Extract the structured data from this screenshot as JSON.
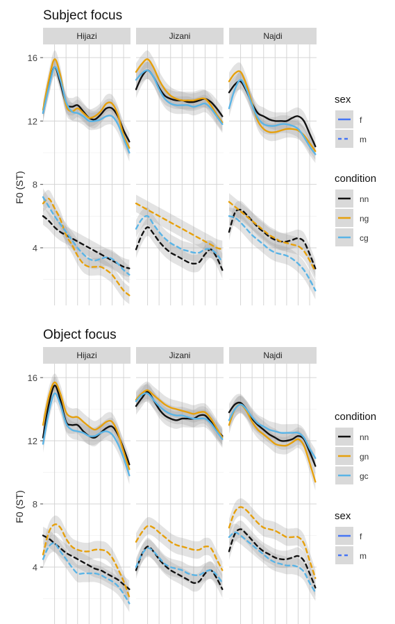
{
  "chart_data": [
    {
      "type": "line",
      "title": "Subject focus",
      "ylabel": "F0 (ST)",
      "ylim": [
        0,
        17.5
      ],
      "yticks": [
        4,
        8,
        12,
        16
      ],
      "xlim": [
        0,
        7.6
      ],
      "xgrid": [
        1,
        2,
        3,
        4,
        5,
        6,
        7
      ],
      "grid": true,
      "legend_position": "right",
      "panels": [
        "Hijazi",
        "Jizani",
        "Najdi"
      ],
      "legends": [
        {
          "title": "sex",
          "entries": [
            {
              "label": "f",
              "style": "solid",
              "color": "#4575f5"
            },
            {
              "label": "m",
              "style": "dashed",
              "color": "#4575f5"
            }
          ]
        },
        {
          "title": "condition",
          "entries": [
            {
              "label": "nn",
              "style": "solid",
              "color": "#111111"
            },
            {
              "label": "ng",
              "style": "solid",
              "color": "#e6a00c"
            },
            {
              "label": "cg",
              "style": "solid",
              "color": "#5ab4e6"
            }
          ]
        }
      ],
      "x": [
        0,
        0.5,
        1,
        1.5,
        2,
        2.5,
        3,
        3.5,
        4,
        4.5,
        5,
        5.5,
        6,
        6.5,
        7,
        7.5
      ],
      "series": [
        {
          "name": "nn",
          "panel": "Hijazi",
          "sex": "f",
          "values": [
            12.5,
            14.2,
            15.4,
            14.4,
            13.1,
            12.9,
            13.0,
            12.6,
            12.2,
            12.1,
            12.4,
            12.8,
            12.8,
            12.3,
            11.4,
            10.7
          ]
        },
        {
          "name": "ng",
          "panel": "Hijazi",
          "sex": "f",
          "values": [
            12.7,
            14.6,
            15.9,
            14.9,
            13.0,
            12.6,
            12.8,
            12.5,
            12.2,
            12.3,
            12.6,
            13.1,
            13.1,
            12.4,
            11.1,
            10.3
          ]
        },
        {
          "name": "cg",
          "panel": "Hijazi",
          "sex": "f",
          "values": [
            12.5,
            14.1,
            15.4,
            14.6,
            13.2,
            12.6,
            12.5,
            12.3,
            12.0,
            12.0,
            12.1,
            12.3,
            12.3,
            11.8,
            10.9,
            10.0
          ]
        },
        {
          "name": "nn",
          "panel": "Hijazi",
          "sex": "m",
          "values": [
            6.0,
            5.7,
            5.3,
            5.0,
            4.8,
            4.6,
            4.4,
            4.2,
            4.0,
            3.8,
            3.6,
            3.4,
            3.2,
            3.0,
            2.8,
            2.7
          ]
        },
        {
          "name": "ng",
          "panel": "Hijazi",
          "sex": "m",
          "values": [
            6.8,
            7.1,
            6.5,
            5.8,
            4.8,
            4.2,
            3.5,
            3.0,
            2.8,
            2.8,
            2.8,
            2.6,
            2.3,
            1.8,
            1.3,
            1.0
          ]
        },
        {
          "name": "cg",
          "panel": "Hijazi",
          "sex": "m",
          "values": [
            7.2,
            6.6,
            6.0,
            5.5,
            5.0,
            4.5,
            4.0,
            3.6,
            3.3,
            3.2,
            3.3,
            3.4,
            3.3,
            3.0,
            2.6,
            2.3
          ]
        },
        {
          "name": "nn",
          "panel": "Jizani",
          "sex": "f",
          "values": [
            14.0,
            14.8,
            15.2,
            14.8,
            14.1,
            13.6,
            13.4,
            13.3,
            13.3,
            13.2,
            13.2,
            13.3,
            13.4,
            13.2,
            12.8,
            12.3
          ]
        },
        {
          "name": "ng",
          "panel": "Jizani",
          "sex": "f",
          "values": [
            15.1,
            15.6,
            15.9,
            15.4,
            14.6,
            14.0,
            13.6,
            13.4,
            13.3,
            13.3,
            13.3,
            13.4,
            13.4,
            13.0,
            12.4,
            11.9
          ]
        },
        {
          "name": "cg",
          "panel": "Jizani",
          "sex": "f",
          "values": [
            14.6,
            15.0,
            15.2,
            14.8,
            14.0,
            13.4,
            13.1,
            13.0,
            13.0,
            13.0,
            12.9,
            13.0,
            13.1,
            12.8,
            12.3,
            11.8
          ]
        },
        {
          "name": "nn",
          "panel": "Jizani",
          "sex": "m",
          "values": [
            3.9,
            4.8,
            5.3,
            4.9,
            4.4,
            4.0,
            3.7,
            3.5,
            3.3,
            3.1,
            3.0,
            3.1,
            3.6,
            3.9,
            3.4,
            2.6
          ]
        },
        {
          "name": "ng",
          "panel": "Jizani",
          "sex": "m",
          "values": [
            6.8,
            6.6,
            6.4,
            6.2,
            6.0,
            5.8,
            5.6,
            5.4,
            5.2,
            5.0,
            4.8,
            4.6,
            4.4,
            4.2,
            4.0,
            3.9
          ]
        },
        {
          "name": "cg",
          "panel": "Jizani",
          "sex": "m",
          "values": [
            5.2,
            5.8,
            6.0,
            5.5,
            5.0,
            4.6,
            4.3,
            4.1,
            3.9,
            3.8,
            3.7,
            3.7,
            3.9,
            3.9,
            3.6,
            3.1
          ]
        },
        {
          "name": "nn",
          "panel": "Najdi",
          "sex": "f",
          "values": [
            13.8,
            14.3,
            14.5,
            13.9,
            13.1,
            12.5,
            12.3,
            12.1,
            12.0,
            12.0,
            12.0,
            12.2,
            12.3,
            12.0,
            11.2,
            10.4
          ]
        },
        {
          "name": "ng",
          "panel": "Najdi",
          "sex": "f",
          "values": [
            14.5,
            15.0,
            15.1,
            14.3,
            13.1,
            12.0,
            11.5,
            11.3,
            11.3,
            11.4,
            11.5,
            11.5,
            11.4,
            11.1,
            10.6,
            10.1
          ]
        },
        {
          "name": "cg",
          "panel": "Najdi",
          "sex": "f",
          "values": [
            12.8,
            14.0,
            14.6,
            14.0,
            13.0,
            12.2,
            11.8,
            11.7,
            11.7,
            11.8,
            11.8,
            11.7,
            11.5,
            11.0,
            10.4,
            9.9
          ]
        },
        {
          "name": "nn",
          "panel": "Najdi",
          "sex": "m",
          "values": [
            5.0,
            6.2,
            6.4,
            6.1,
            5.7,
            5.3,
            5.0,
            4.7,
            4.5,
            4.4,
            4.4,
            4.5,
            4.6,
            4.4,
            3.6,
            2.7
          ]
        },
        {
          "name": "ng",
          "panel": "Najdi",
          "sex": "m",
          "values": [
            6.9,
            6.6,
            6.3,
            6.0,
            5.7,
            5.4,
            5.1,
            4.8,
            4.6,
            4.4,
            4.3,
            4.2,
            4.1,
            3.8,
            3.2,
            2.5
          ]
        },
        {
          "name": "cg",
          "panel": "Najdi",
          "sex": "m",
          "values": [
            6.0,
            5.9,
            5.6,
            5.2,
            4.8,
            4.5,
            4.2,
            3.9,
            3.7,
            3.6,
            3.5,
            3.3,
            3.0,
            2.6,
            2.0,
            1.3
          ]
        }
      ]
    },
    {
      "type": "line",
      "title": "Object focus",
      "ylabel": "F0 (ST)",
      "ylim": [
        0,
        17.5
      ],
      "yticks": [
        4,
        8,
        12,
        16
      ],
      "xlim": [
        0,
        7.6
      ],
      "xgrid": [
        1,
        2,
        3,
        4,
        5,
        6,
        7
      ],
      "grid": true,
      "legend_position": "right",
      "panels": [
        "Hijazi",
        "Jizani",
        "Najdi"
      ],
      "legends": [
        {
          "title": "condition",
          "entries": [
            {
              "label": "nn",
              "style": "solid",
              "color": "#111111"
            },
            {
              "label": "gn",
              "style": "solid",
              "color": "#e6a00c"
            },
            {
              "label": "gc",
              "style": "solid",
              "color": "#5ab4e6"
            }
          ]
        },
        {
          "title": "sex",
          "entries": [
            {
              "label": "f",
              "style": "solid",
              "color": "#4575f5"
            },
            {
              "label": "m",
              "style": "dashed",
              "color": "#4575f5"
            }
          ]
        }
      ],
      "x": [
        0,
        0.5,
        1,
        1.5,
        2,
        2.5,
        3,
        3.5,
        4,
        4.5,
        5,
        5.5,
        6,
        6.5,
        7,
        7.5
      ],
      "series": [
        {
          "name": "nn",
          "panel": "Hijazi",
          "sex": "f",
          "values": [
            12.2,
            14.3,
            15.5,
            14.6,
            13.2,
            13.0,
            13.0,
            12.6,
            12.3,
            12.2,
            12.5,
            12.8,
            12.9,
            12.4,
            11.5,
            10.5
          ]
        },
        {
          "name": "gn",
          "panel": "Hijazi",
          "sex": "f",
          "values": [
            13.0,
            14.8,
            15.7,
            15.0,
            13.8,
            13.5,
            13.5,
            13.2,
            12.9,
            12.7,
            12.9,
            13.2,
            13.2,
            12.5,
            11.3,
            10.2
          ]
        },
        {
          "name": "gc",
          "panel": "Hijazi",
          "sex": "f",
          "values": [
            11.8,
            13.8,
            15.0,
            14.3,
            13.1,
            12.7,
            12.6,
            12.5,
            12.3,
            12.3,
            12.5,
            12.6,
            12.4,
            11.8,
            10.9,
            9.8
          ]
        },
        {
          "name": "nn",
          "panel": "Hijazi",
          "sex": "m",
          "values": [
            6.0,
            5.8,
            5.5,
            5.2,
            4.9,
            4.7,
            4.5,
            4.3,
            4.1,
            3.9,
            3.8,
            3.6,
            3.4,
            3.2,
            2.9,
            2.6
          ]
        },
        {
          "name": "gn",
          "panel": "Hijazi",
          "sex": "m",
          "values": [
            4.8,
            6.2,
            6.7,
            6.5,
            5.8,
            5.3,
            5.1,
            5.0,
            5.0,
            5.1,
            5.1,
            5.0,
            4.6,
            3.9,
            3.1,
            2.1
          ]
        },
        {
          "name": "gc",
          "panel": "Hijazi",
          "sex": "m",
          "values": [
            4.5,
            5.3,
            5.5,
            5.0,
            4.5,
            4.0,
            3.6,
            3.6,
            3.6,
            3.6,
            3.5,
            3.3,
            3.1,
            2.8,
            2.3,
            1.7
          ]
        },
        {
          "name": "nn",
          "panel": "Jizani",
          "sex": "f",
          "values": [
            14.2,
            14.7,
            15.1,
            14.6,
            14.0,
            13.6,
            13.4,
            13.3,
            13.4,
            13.4,
            13.4,
            13.6,
            13.6,
            13.2,
            12.7,
            12.3
          ]
        },
        {
          "name": "gn",
          "panel": "Jizani",
          "sex": "f",
          "values": [
            14.6,
            15.0,
            15.2,
            14.9,
            14.6,
            14.3,
            14.1,
            14.0,
            13.9,
            13.8,
            13.7,
            13.8,
            13.8,
            13.4,
            12.8,
            12.2
          ]
        },
        {
          "name": "gc",
          "panel": "Jizani",
          "sex": "f",
          "values": [
            14.5,
            14.9,
            15.0,
            14.6,
            14.2,
            13.9,
            13.7,
            13.6,
            13.6,
            13.5,
            13.4,
            13.4,
            13.4,
            13.1,
            12.6,
            12.1
          ]
        },
        {
          "name": "nn",
          "panel": "Jizani",
          "sex": "m",
          "values": [
            3.8,
            4.8,
            5.3,
            5.0,
            4.5,
            4.1,
            3.8,
            3.6,
            3.4,
            3.2,
            3.0,
            3.1,
            3.6,
            3.8,
            3.3,
            2.6
          ]
        },
        {
          "name": "gn",
          "panel": "Jizani",
          "sex": "m",
          "values": [
            5.6,
            6.2,
            6.6,
            6.5,
            6.2,
            5.9,
            5.6,
            5.4,
            5.3,
            5.2,
            5.1,
            5.1,
            5.3,
            5.2,
            4.5,
            3.8
          ]
        },
        {
          "name": "gc",
          "panel": "Jizani",
          "sex": "m",
          "values": [
            4.0,
            4.8,
            5.2,
            5.0,
            4.6,
            4.2,
            4.0,
            3.9,
            3.8,
            3.6,
            3.5,
            3.5,
            3.7,
            3.8,
            3.5,
            3.0
          ]
        },
        {
          "name": "nn",
          "panel": "Najdi",
          "sex": "f",
          "values": [
            13.8,
            14.3,
            14.4,
            14.0,
            13.4,
            13.0,
            12.7,
            12.4,
            12.2,
            12.0,
            12.0,
            12.1,
            12.3,
            12.1,
            11.3,
            10.4
          ]
        },
        {
          "name": "gn",
          "panel": "Najdi",
          "sex": "f",
          "values": [
            13.0,
            14.0,
            14.3,
            13.9,
            13.2,
            12.7,
            12.4,
            12.1,
            11.8,
            11.7,
            11.7,
            11.9,
            12.1,
            11.7,
            10.6,
            9.4
          ]
        },
        {
          "name": "gc",
          "panel": "Najdi",
          "sex": "f",
          "values": [
            13.3,
            14.0,
            14.3,
            14.0,
            13.5,
            13.1,
            12.9,
            12.7,
            12.6,
            12.5,
            12.5,
            12.5,
            12.5,
            12.2,
            11.5,
            10.9
          ]
        },
        {
          "name": "nn",
          "panel": "Najdi",
          "sex": "m",
          "values": [
            5.0,
            6.1,
            6.4,
            6.1,
            5.7,
            5.3,
            5.0,
            4.8,
            4.6,
            4.5,
            4.5,
            4.6,
            4.7,
            4.4,
            3.6,
            2.7
          ]
        },
        {
          "name": "gn",
          "panel": "Najdi",
          "sex": "m",
          "values": [
            6.5,
            7.5,
            7.8,
            7.6,
            7.2,
            6.8,
            6.5,
            6.4,
            6.3,
            6.1,
            5.9,
            5.9,
            5.9,
            5.5,
            4.4,
            3.3
          ]
        },
        {
          "name": "gc",
          "panel": "Najdi",
          "sex": "m",
          "values": [
            5.9,
            6.2,
            6.0,
            5.7,
            5.4,
            5.1,
            4.8,
            4.5,
            4.3,
            4.2,
            4.1,
            4.1,
            4.0,
            3.7,
            3.0,
            2.4
          ]
        }
      ]
    }
  ]
}
